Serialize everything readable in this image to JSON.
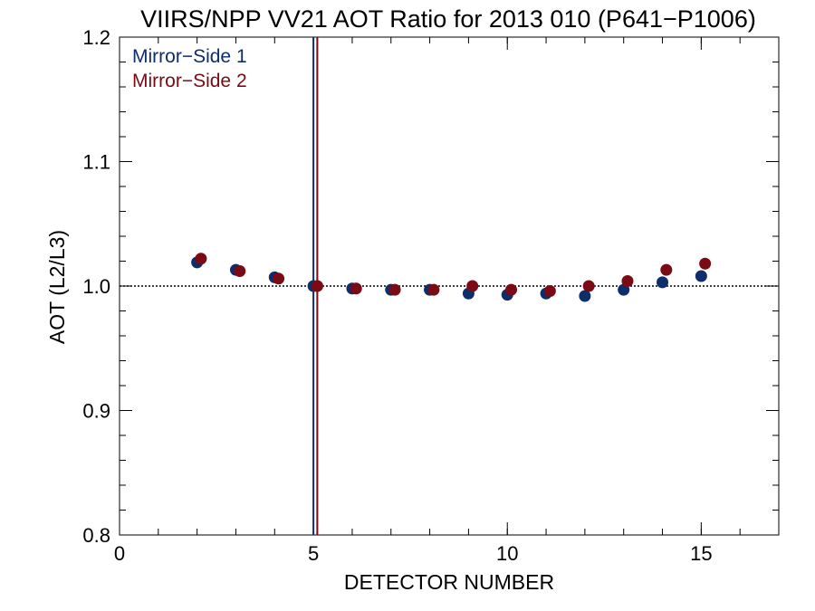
{
  "chart_data": {
    "type": "scatter",
    "title": "VIIRS/NPP VV21 AOT Ratio for 2013 010 (P641−P1006)",
    "xlabel": "DETECTOR NUMBER",
    "ylabel": "AOT (L2/L3)",
    "xlim": [
      0,
      17
    ],
    "ylim": [
      0.8,
      1.2
    ],
    "x_ticks": [
      0,
      5,
      10,
      15
    ],
    "x_tick_labels": [
      "0",
      "5",
      "10",
      "15"
    ],
    "y_ticks": [
      0.8,
      0.9,
      1.0,
      1.1,
      1.2
    ],
    "y_tick_labels": [
      "0.8",
      "0.9",
      "1.0",
      "1.1",
      "1.2"
    ],
    "x_minor_step": 1,
    "y_minor_step": 0.02,
    "grid": false,
    "legend_position": "top-left",
    "reference_line": {
      "y": 1.0,
      "style": "dotted",
      "color": "#000000"
    },
    "series": [
      {
        "name": "Mirror−Side 1",
        "color": "#0d2d6b",
        "x": [
          2,
          3,
          4,
          5,
          6,
          7,
          8,
          9,
          10,
          11,
          12,
          13,
          14,
          15
        ],
        "values": [
          1.019,
          1.013,
          1.007,
          1.0,
          0.998,
          0.997,
          0.997,
          0.994,
          0.993,
          0.994,
          0.992,
          0.997,
          1.003,
          1.008
        ],
        "vline": 5
      },
      {
        "name": "Mirror−Side 2",
        "color": "#7a0a14",
        "x": [
          2.1,
          3.1,
          4.1,
          5.1,
          6.1,
          7.1,
          8.1,
          9.1,
          10.1,
          11.1,
          12.1,
          13.1,
          14.1,
          15.1
        ],
        "values": [
          1.022,
          1.012,
          1.006,
          1.0,
          0.998,
          0.997,
          0.997,
          1.0,
          0.997,
          0.996,
          1.0,
          1.004,
          1.013,
          1.018
        ],
        "vline": 5.1
      }
    ]
  }
}
